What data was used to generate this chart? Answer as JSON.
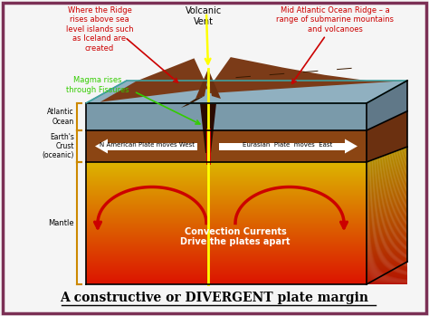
{
  "title": "A constructive or DIVERGENT plate margin",
  "title_fontsize": 10,
  "bg_color": "#f5f5f5",
  "border_color": "#7B3055",
  "annotations": {
    "ridge_label": "Where the Ridge\nrises above sea\nlevel islands such\nas Iceland are\ncreated",
    "ridge_label_color": "#cc0000",
    "volcanic_vent_label": "Volcanic\nVent",
    "volcanic_vent_color": "#000000",
    "mid_atlantic_label": "Mid Atlantic Ocean Ridge – a\nrange of submarine mountains\nand volcanoes",
    "mid_atlantic_color": "#cc0000",
    "magma_label": "Magma rises\nthrough Fissures",
    "magma_color": "#33cc00",
    "atlantic_ocean_label": "Atlantic\nOcean",
    "earths_crust_label": "Earth's\nCrust\n(oceanic)",
    "mantle_label": "Mantle",
    "n_american_label": "N American Plate moves West",
    "eurasian_label": "Eurasian  Plate  moves  East",
    "convection_label": "Convection Currents\nDrive the plates apart",
    "convection_color": "#ffffff"
  },
  "colors": {
    "crust_brown": "#8B4513",
    "crust_dark": "#6B3010",
    "crust_side": "#5C2A0A",
    "mantle_orange": "#ff8800",
    "mantle_red": "#cc0000",
    "mantle_bright": "#ff4400",
    "ocean_front": "#7a9aaa",
    "ocean_top": "#90b0c0",
    "ocean_side": "#607888",
    "ocean_teal_outline": "#40a0a0",
    "ridge_brown": "#7B3B18",
    "rift_dark": "#2A0A00",
    "plate_arrow": "#ffffff",
    "convection_arrow": "#cc0000",
    "fissure_yellow": "#ffff00",
    "fissure_red": "#dd0000",
    "label_bracket": "#cc8800"
  }
}
